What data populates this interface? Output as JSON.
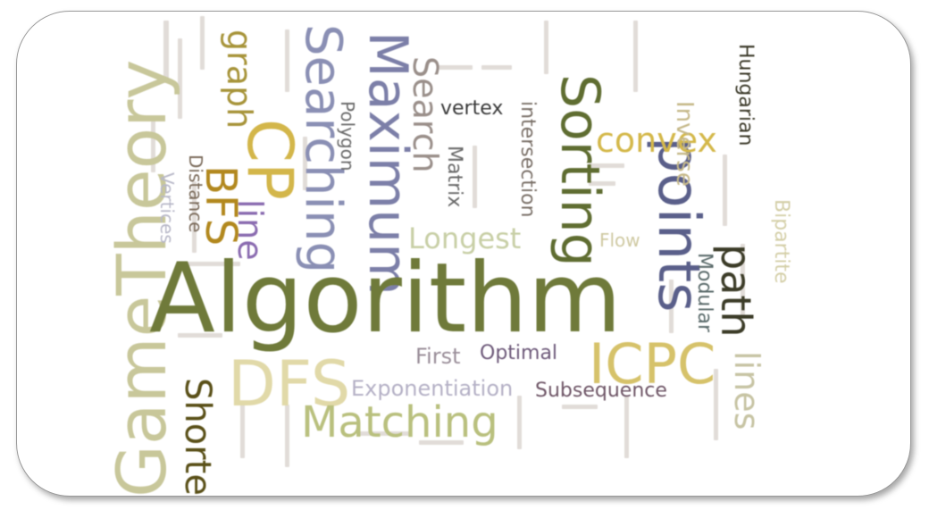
{
  "words": {
    "algorithm": "Algorithm",
    "game_theory": "GameTheory",
    "searching": "Searching",
    "maximum": "Maximum",
    "search": "Search",
    "sorting": "Sorting",
    "points": "points",
    "convex": "convex",
    "icpc": "ICPC",
    "dfs": "DFS",
    "matching": "Matching",
    "bfs": "BFS",
    "cp": "CP",
    "graph": "graph",
    "line": "line",
    "longest": "Longest",
    "path": "path",
    "hungarian": "Hungarian",
    "vertex": "vertex",
    "intersection": "intersection",
    "first": "First",
    "optimal": "Optimal",
    "exponentiation": "Exponentiation",
    "subsequence": "Subsequence",
    "shortest": "Shortes",
    "distance": "Distance",
    "matrix": "Matrix",
    "modular": "Modular",
    "flow": "Flow",
    "polygon": "Polygon",
    "vertices": "Vertices",
    "bipartite": "Bipartite",
    "inverse": "Inverse",
    "lines": "lines"
  },
  "colors": {
    "olive": "#6f7a3a",
    "khaki": "#c9c183",
    "slate": "#5a5f8a",
    "mustard": "#c5a93a",
    "dark_olive": "#525a2a",
    "purple": "#6d5a7a",
    "light_green": "#b5bd7a"
  }
}
